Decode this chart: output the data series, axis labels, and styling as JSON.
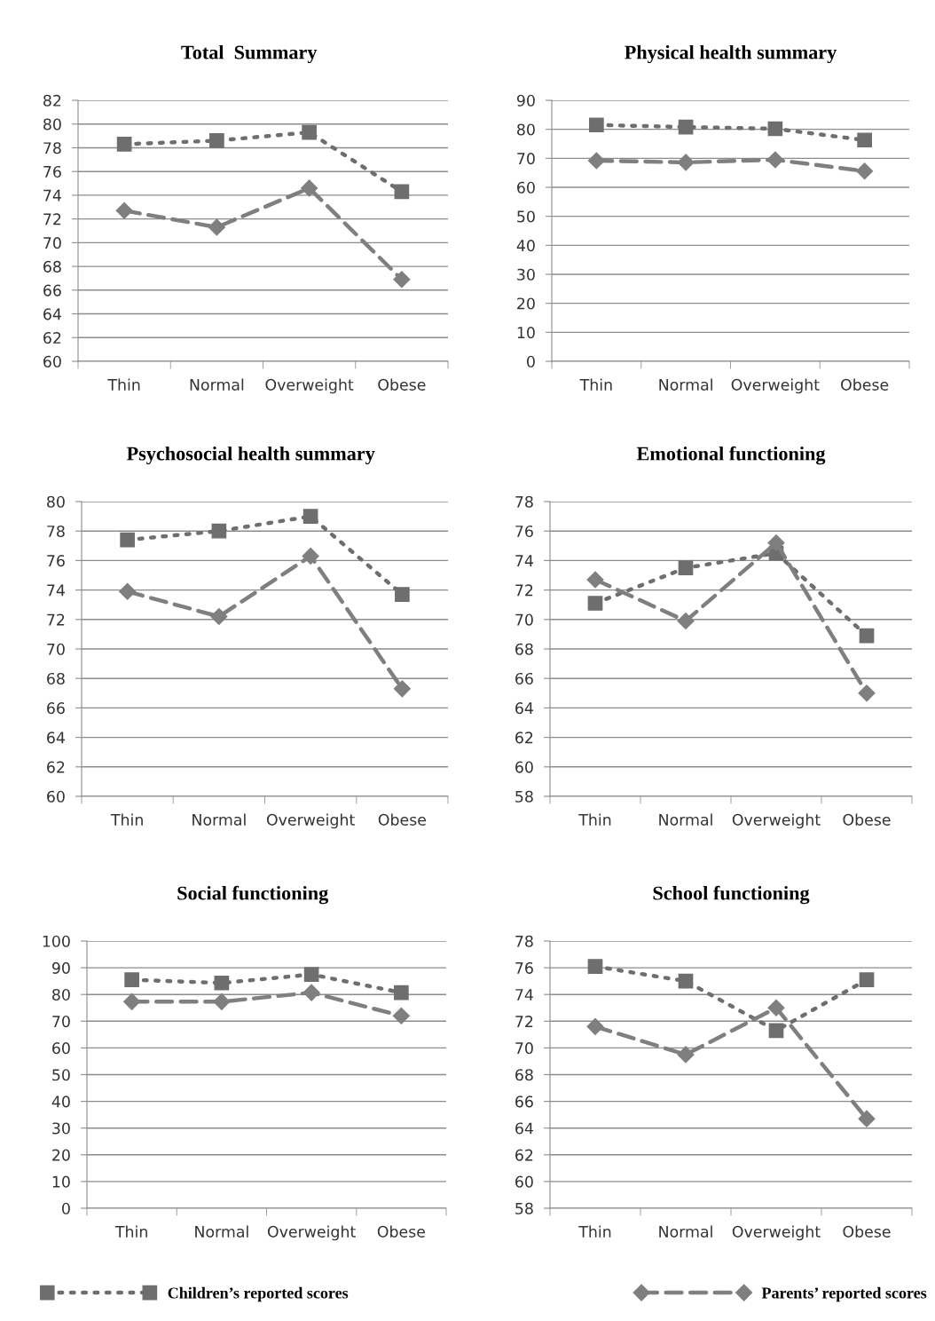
{
  "chart_data": [
    {
      "type": "line",
      "title": "Total  Summary",
      "categories": [
        "Thin",
        "Normal",
        "Overweight",
        "Obese"
      ],
      "ylim": [
        60,
        82
      ],
      "yticks": [
        60,
        62,
        64,
        66,
        68,
        70,
        72,
        74,
        76,
        78,
        80,
        82
      ],
      "grid": "y",
      "legend": "bottom",
      "series": [
        {
          "name": "Children’s reported scores",
          "color": "#6e6e6e",
          "marker": "square",
          "line_style": "dotted",
          "values": [
            78.3,
            78.6,
            79.3,
            74.3
          ]
        },
        {
          "name": "Parents’ reported scores",
          "color": "#7f7f7f",
          "marker": "diamond",
          "line_style": "dashed",
          "values": [
            72.7,
            71.3,
            74.6,
            66.9
          ]
        }
      ]
    },
    {
      "type": "line",
      "title": "Physical health summary",
      "categories": [
        "Thin",
        "Normal",
        "Overweight",
        "Obese"
      ],
      "ylim": [
        0,
        90
      ],
      "yticks": [
        0,
        10,
        20,
        30,
        40,
        50,
        60,
        70,
        80,
        90
      ],
      "grid": "y",
      "series": [
        {
          "color": "#6e6e6e",
          "marker": "square",
          "line_style": "dotted",
          "values": [
            81.5,
            80.8,
            80.2,
            76.3
          ]
        },
        {
          "color": "#7f7f7f",
          "marker": "diamond",
          "line_style": "dashed",
          "values": [
            69.2,
            68.6,
            69.5,
            65.6
          ]
        }
      ]
    },
    {
      "type": "line",
      "title": "Psychosocial health summary",
      "categories": [
        "Thin",
        "Normal",
        "Overweight",
        "Obese"
      ],
      "ylim": [
        60,
        80
      ],
      "yticks": [
        60,
        62,
        64,
        66,
        68,
        70,
        72,
        74,
        76,
        78,
        80
      ],
      "grid": "y",
      "series": [
        {
          "color": "#6e6e6e",
          "marker": "square",
          "line_style": "dotted",
          "values": [
            77.4,
            78.0,
            79.0,
            73.7
          ]
        },
        {
          "color": "#7f7f7f",
          "marker": "diamond",
          "line_style": "dashed",
          "values": [
            73.9,
            72.2,
            76.3,
            67.3
          ]
        }
      ]
    },
    {
      "type": "line",
      "title": "Emotional functioning",
      "categories": [
        "Thin",
        "Normal",
        "Overweight",
        "Obese"
      ],
      "ylim": [
        58,
        78
      ],
      "yticks": [
        58,
        60,
        62,
        64,
        66,
        68,
        70,
        72,
        74,
        76,
        78
      ],
      "grid": "y",
      "series": [
        {
          "color": "#6e6e6e",
          "marker": "square",
          "line_style": "dotted",
          "values": [
            71.1,
            73.5,
            74.5,
            68.9
          ]
        },
        {
          "color": "#7f7f7f",
          "marker": "diamond",
          "line_style": "dashed",
          "values": [
            72.7,
            69.9,
            75.2,
            65.0
          ]
        }
      ]
    },
    {
      "type": "line",
      "title": "Social functioning",
      "categories": [
        "Thin",
        "Normal",
        "Overweight",
        "Obese"
      ],
      "ylim": [
        0,
        100
      ],
      "yticks": [
        0,
        10,
        20,
        30,
        40,
        50,
        60,
        70,
        80,
        90,
        100
      ],
      "grid": "y",
      "series": [
        {
          "color": "#6e6e6e",
          "marker": "square",
          "line_style": "dotted",
          "values": [
            85.5,
            84.3,
            87.5,
            80.7
          ]
        },
        {
          "color": "#7f7f7f",
          "marker": "diamond",
          "line_style": "dashed",
          "values": [
            77.3,
            77.3,
            80.7,
            72.0
          ]
        }
      ]
    },
    {
      "type": "line",
      "title": "School functioning",
      "categories": [
        "Thin",
        "Normal",
        "Overweight",
        "Obese"
      ],
      "ylim": [
        58,
        78
      ],
      "yticks": [
        58,
        60,
        62,
        64,
        66,
        68,
        70,
        72,
        74,
        76,
        78
      ],
      "grid": "y",
      "series": [
        {
          "color": "#6e6e6e",
          "marker": "square",
          "line_style": "dotted",
          "values": [
            76.1,
            75.0,
            71.3,
            75.1
          ]
        },
        {
          "color": "#7f7f7f",
          "marker": "diamond",
          "line_style": "dashed",
          "values": [
            71.6,
            69.5,
            73.0,
            64.7
          ]
        }
      ]
    }
  ]
}
